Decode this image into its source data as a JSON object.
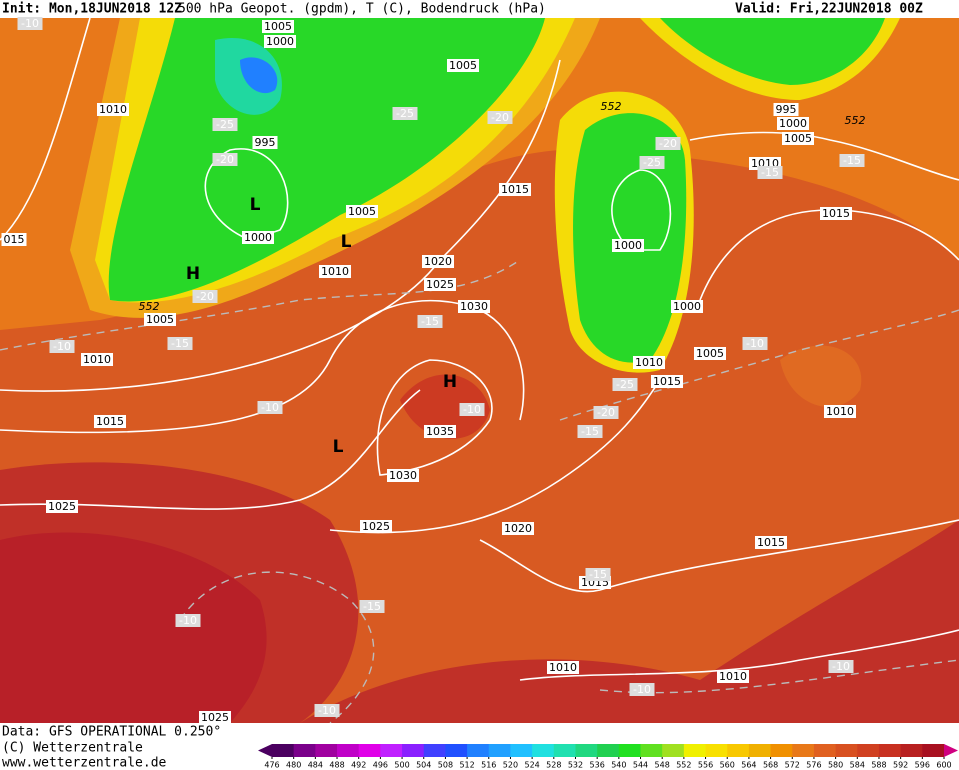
{
  "header": {
    "init": "Init: Mon,18JUN2018 12Z",
    "title": "500 hPa Geopot. (gpdm), T (C), Bodendruck (hPa)",
    "valid": "Valid: Fri,22JUN2018 00Z"
  },
  "footer": {
    "data": "Data: GFS OPERATIONAL 0.250°",
    "copyright": "(C) Wetterzentrale",
    "url": "www.wetterzentrale.de"
  },
  "colorbar": {
    "labels": [
      476,
      480,
      484,
      488,
      492,
      496,
      500,
      504,
      508,
      512,
      516,
      520,
      524,
      528,
      532,
      536,
      540,
      544,
      548,
      552,
      556,
      560,
      564,
      568,
      572,
      576,
      580,
      584,
      588,
      592,
      596,
      600
    ],
    "colors": [
      "#4b0060",
      "#7a008a",
      "#a000a0",
      "#c000c8",
      "#e000e8",
      "#c020ff",
      "#8a20ff",
      "#4040ff",
      "#2050ff",
      "#2080ff",
      "#20a0ff",
      "#20c0ff",
      "#20e0e0",
      "#20e0b0",
      "#20d880",
      "#20d050",
      "#20e020",
      "#60e020",
      "#a0e020",
      "#f0f000",
      "#f8e000",
      "#f8c800",
      "#f0b000",
      "#f09000",
      "#e87818",
      "#e06020",
      "#d85020",
      "#d04020",
      "#c83020",
      "#b82020",
      "#a81020"
    ]
  },
  "map": {
    "pressure_labels": [
      "1005",
      "1000",
      "1005",
      "1010",
      "995",
      "1000",
      "1005",
      "1010",
      "1015",
      "1020",
      "1025",
      "1030",
      "1005",
      "1010",
      "1015",
      "1035",
      "1030",
      "1025",
      "1025",
      "1020",
      "1015",
      "1015",
      "1010",
      "1010",
      "1000",
      "1000",
      "1005",
      "1010",
      "1015",
      "1010",
      "1015",
      "1010",
      "995",
      "1000",
      "1005",
      "015",
      "1025"
    ],
    "temperature_labels": [
      "-10",
      "-25",
      "-20",
      "-25",
      "-20",
      "-20",
      "-15",
      "-10",
      "-15",
      "-10",
      "-10",
      "-15",
      "-20",
      "-25",
      "-25",
      "-20",
      "-15",
      "-15",
      "-10",
      "-15",
      "-10",
      "-10",
      "-10",
      "-10",
      "-15"
    ],
    "geopotential_labels": [
      "552",
      "552",
      "552"
    ],
    "centers": [
      "L",
      "L",
      "H",
      "H",
      "L"
    ]
  }
}
